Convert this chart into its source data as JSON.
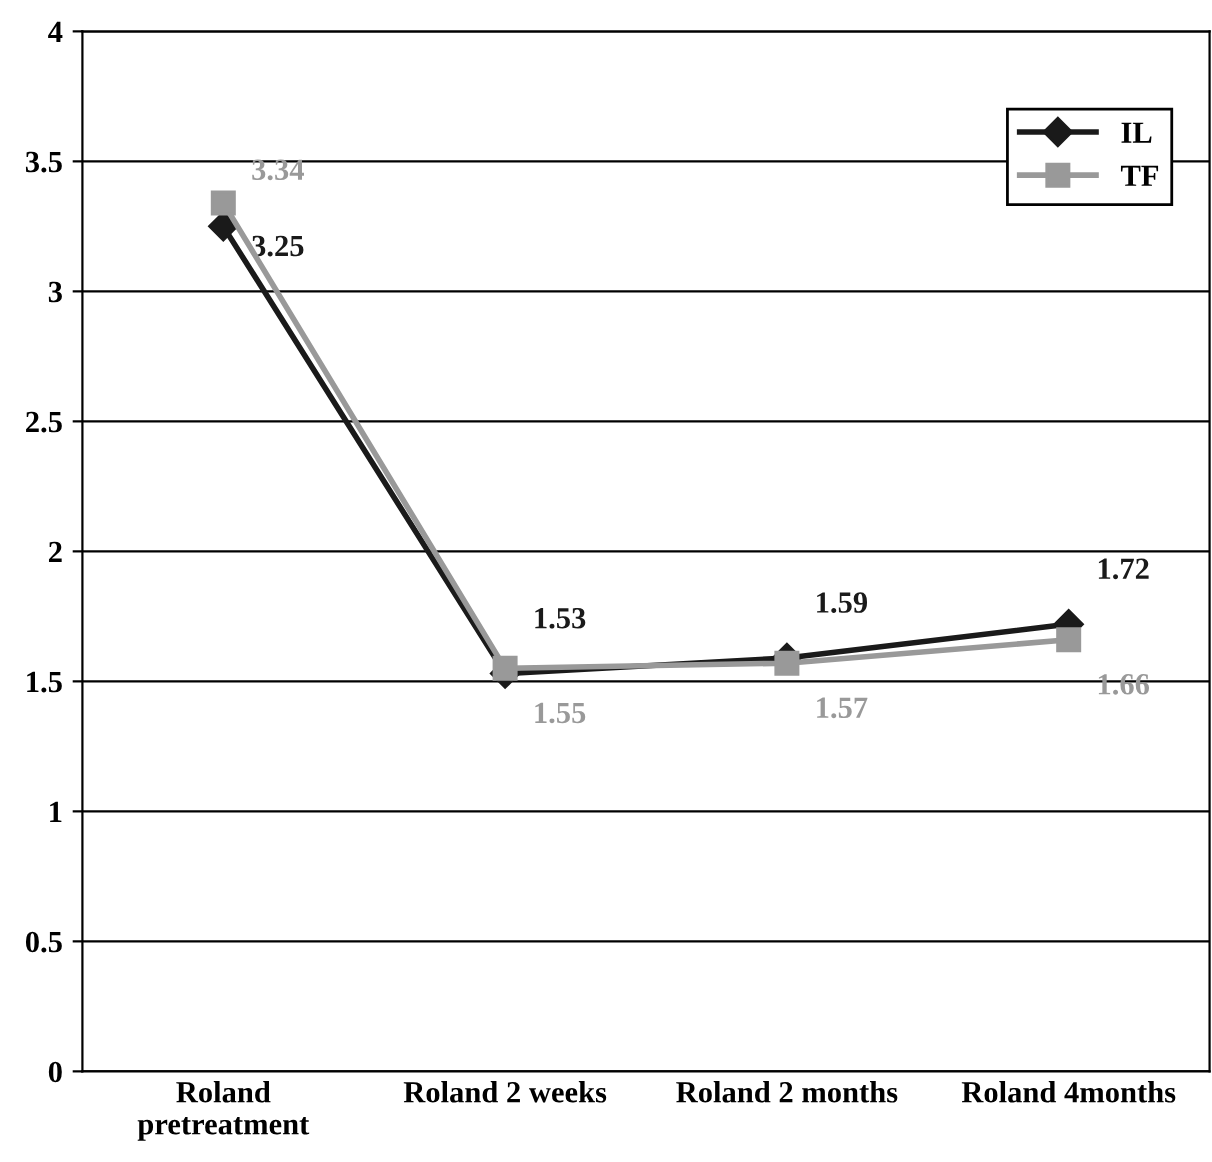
{
  "chart_data": {
    "type": "line",
    "categories": [
      "Roland\npretreatment",
      "Roland 2 weeks",
      "Roland 2 months",
      "Roland 4months"
    ],
    "series": [
      {
        "name": "IL",
        "color": "#1a1a1a",
        "marker": "diamond",
        "values": [
          3.25,
          1.53,
          1.59,
          1.72
        ]
      },
      {
        "name": "TF",
        "color": "#999999",
        "marker": "square",
        "values": [
          3.34,
          1.55,
          1.57,
          1.66
        ]
      }
    ],
    "ylim": [
      0,
      4
    ],
    "yticks": [
      0,
      0.5,
      1,
      1.5,
      2,
      2.5,
      3,
      3.5,
      4
    ],
    "grid": "y",
    "legend": "top right",
    "data_labels": true,
    "line_style": "solid"
  }
}
